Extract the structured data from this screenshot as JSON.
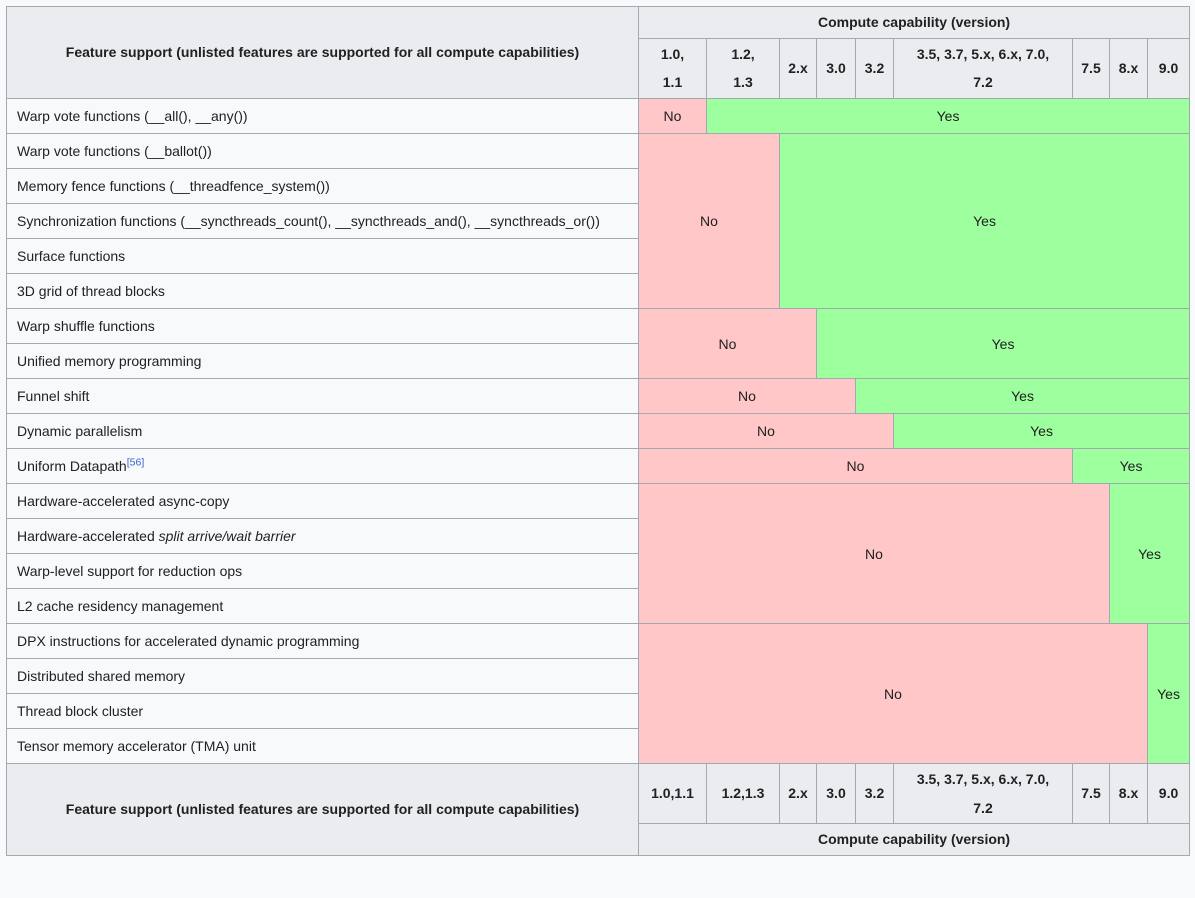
{
  "colors": {
    "yes_bg": "#9eff9e",
    "no_bg": "#ffc7c7",
    "header_bg": "#eaecf0",
    "row_bg": "#f8f9fa",
    "page_bg": "#f8f9fa",
    "border": "#a2a9b1",
    "text": "#202122",
    "link": "#3366cc"
  },
  "table": {
    "header": {
      "feature_title": "Feature support (unlisted features are supported for all compute capabilities)",
      "group_title": "Compute capability (version)",
      "columns": [
        "1.0,\n1.1",
        "1.2,\n1.3",
        "2.x",
        "3.0",
        "3.2",
        "3.5, 3.7, 5.x, 6.x, 7.0,\n7.2",
        "7.5",
        "8.x",
        "9.0"
      ]
    },
    "footer": {
      "feature_title": "Feature support (unlisted features are supported for all compute capabilities)",
      "group_title": "Compute capability (version)",
      "columns": [
        "1.0,1.1",
        "1.2,1.3",
        "2.x",
        "3.0",
        "3.2",
        "3.5, 3.7, 5.x, 6.x, 7.0,\n7.2",
        "7.5",
        "8.x",
        "9.0"
      ]
    },
    "cell_labels": {
      "yes": "Yes",
      "no": "No"
    },
    "rows": [
      {
        "feature_parts": [
          {
            "text": "Warp vote functions (__all(), __any())"
          }
        ],
        "cells": [
          {
            "label": "No",
            "status": "no",
            "colspan": 1,
            "rowspan": 1
          },
          {
            "label": "Yes",
            "status": "yes",
            "colspan": 8,
            "rowspan": 1
          }
        ]
      },
      {
        "feature_parts": [
          {
            "text": "Warp vote functions (__ballot())"
          }
        ],
        "cells": [
          {
            "label": "No",
            "status": "no",
            "colspan": 2,
            "rowspan": 5
          },
          {
            "label": "Yes",
            "status": "yes",
            "colspan": 7,
            "rowspan": 5
          }
        ]
      },
      {
        "feature_parts": [
          {
            "text": "Memory fence functions (__threadfence_system())"
          }
        ],
        "cells": []
      },
      {
        "feature_parts": [
          {
            "text": "Synchronization functions (__syncthreads_count(), __syncthreads_and(), __syncthreads_or())"
          }
        ],
        "cells": []
      },
      {
        "feature_parts": [
          {
            "text": "Surface functions"
          }
        ],
        "cells": []
      },
      {
        "feature_parts": [
          {
            "text": "3D grid of thread blocks"
          }
        ],
        "cells": []
      },
      {
        "feature_parts": [
          {
            "text": "Warp shuffle functions"
          }
        ],
        "cells": [
          {
            "label": "No",
            "status": "no",
            "colspan": 3,
            "rowspan": 2
          },
          {
            "label": "Yes",
            "status": "yes",
            "colspan": 6,
            "rowspan": 2
          }
        ]
      },
      {
        "feature_parts": [
          {
            "text": "Unified memory programming"
          }
        ],
        "cells": []
      },
      {
        "feature_parts": [
          {
            "text": "Funnel shift"
          }
        ],
        "cells": [
          {
            "label": "No",
            "status": "no",
            "colspan": 4,
            "rowspan": 1
          },
          {
            "label": "Yes",
            "status": "yes",
            "colspan": 5,
            "rowspan": 1
          }
        ]
      },
      {
        "feature_parts": [
          {
            "text": "Dynamic parallelism"
          }
        ],
        "cells": [
          {
            "label": "No",
            "status": "no",
            "colspan": 5,
            "rowspan": 1
          },
          {
            "label": "Yes",
            "status": "yes",
            "colspan": 4,
            "rowspan": 1
          }
        ]
      },
      {
        "feature_parts": [
          {
            "text": "Uniform Datapath"
          },
          {
            "text": "[56]",
            "style": "sup"
          }
        ],
        "cells": [
          {
            "label": "No",
            "status": "no",
            "colspan": 6,
            "rowspan": 1
          },
          {
            "label": "Yes",
            "status": "yes",
            "colspan": 3,
            "rowspan": 1
          }
        ]
      },
      {
        "feature_parts": [
          {
            "text": "Hardware-accelerated async-copy"
          }
        ],
        "cells": [
          {
            "label": "No",
            "status": "no",
            "colspan": 7,
            "rowspan": 4
          },
          {
            "label": "Yes",
            "status": "yes",
            "colspan": 2,
            "rowspan": 4
          }
        ]
      },
      {
        "feature_parts": [
          {
            "text": "Hardware-accelerated "
          },
          {
            "text": "split arrive/wait barrier",
            "style": "italic"
          }
        ],
        "cells": []
      },
      {
        "feature_parts": [
          {
            "text": "Warp-level support for reduction ops"
          }
        ],
        "cells": []
      },
      {
        "feature_parts": [
          {
            "text": "L2 cache residency management"
          }
        ],
        "cells": []
      },
      {
        "feature_parts": [
          {
            "text": "DPX instructions for accelerated dynamic programming"
          }
        ],
        "cells": [
          {
            "label": "No",
            "status": "no",
            "colspan": 8,
            "rowspan": 4
          },
          {
            "label": "Yes",
            "status": "yes",
            "colspan": 1,
            "rowspan": 4
          }
        ]
      },
      {
        "feature_parts": [
          {
            "text": "Distributed shared memory"
          }
        ],
        "cells": []
      },
      {
        "feature_parts": [
          {
            "text": "Thread block cluster"
          }
        ],
        "cells": []
      },
      {
        "feature_parts": [
          {
            "text": "Tensor memory accelerator (TMA) unit"
          }
        ],
        "cells": []
      }
    ]
  }
}
